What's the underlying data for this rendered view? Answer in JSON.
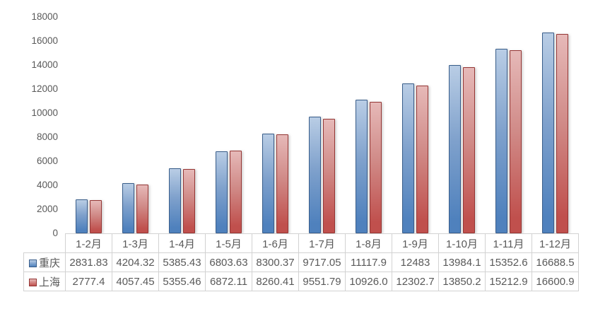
{
  "chart_data": {
    "type": "bar",
    "title": "",
    "xlabel": "",
    "ylabel": "",
    "categories": [
      "1-2月",
      "1-3月",
      "1-4月",
      "1-5月",
      "1-6月",
      "1-7月",
      "1-8月",
      "1-9月",
      "1-10月",
      "1-11月",
      "1-12月"
    ],
    "series": [
      {
        "name": "重庆",
        "fill": "#4F81BD",
        "fill_light": "#B9CDE5",
        "border": "#385D8A",
        "values": [
          2831.83,
          4204.32,
          5385.43,
          6803.63,
          8300.37,
          9717.05,
          11117.9,
          12483,
          13984.1,
          15352.6,
          16688.5
        ],
        "labels": [
          "2831.83",
          "4204.32",
          "5385.43",
          "6803.63",
          "8300.37",
          "9717.05",
          "11117.9",
          "12483",
          "13984.1",
          "15352.6",
          "16688.5"
        ]
      },
      {
        "name": "上海",
        "fill": "#C0504D",
        "fill_light": "#E6B9B8",
        "border": "#943634",
        "values": [
          2777.4,
          4057.45,
          5355.46,
          6872.11,
          8260.41,
          9551.79,
          10926.0,
          12302.7,
          13850.2,
          15212.9,
          16600.9
        ],
        "labels": [
          "2777.4",
          "4057.45",
          "5355.46",
          "6872.11",
          "8260.41",
          "9551.79",
          "10926.0",
          "12302.7",
          "13850.2",
          "15212.9",
          "16600.9"
        ]
      }
    ],
    "ylim": [
      0,
      18000
    ],
    "ytick_interval": 2000,
    "yticks": [
      "0",
      "2000",
      "4000",
      "6000",
      "8000",
      "10000",
      "12000",
      "14000",
      "16000",
      "18000"
    ],
    "grid": false,
    "axis_text_color": "#595959",
    "table_text_color": "#595959",
    "table_border_color": "#d2d2d2",
    "legend_position": "data-table-left",
    "data_table_shown": true
  }
}
